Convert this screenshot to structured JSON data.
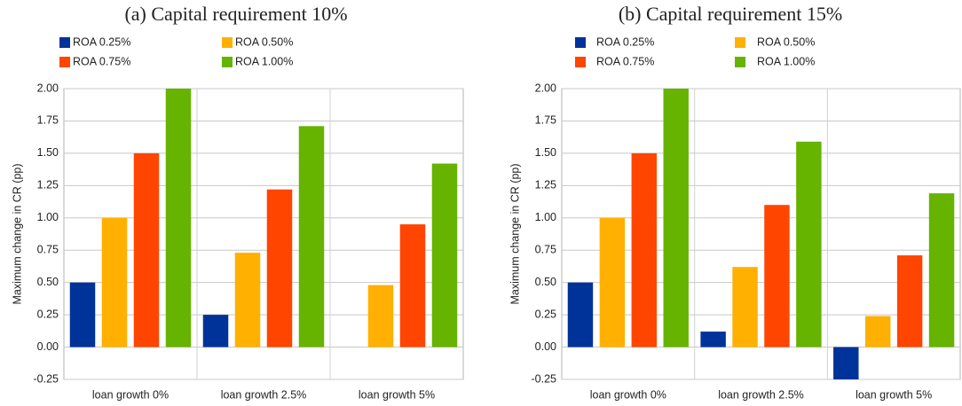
{
  "chart_data": [
    {
      "type": "bar",
      "title": "(a) Capital requirement 10%",
      "y_label": "Maximum change in CR (pp)",
      "categories": [
        "loan growth 0%",
        "loan growth 2.5%",
        "loan growth 5%"
      ],
      "series": [
        {
          "name": "ROA 0.25%",
          "color": "#003399",
          "values": [
            0.5,
            0.25,
            0
          ]
        },
        {
          "name": "ROA 0.50%",
          "color": "#ffb000",
          "values": [
            1.0,
            0.73,
            0.48
          ]
        },
        {
          "name": "ROA 0.75%",
          "color": "#ff4500",
          "values": [
            1.5,
            1.22,
            0.95
          ]
        },
        {
          "name": "ROA 1.00%",
          "color": "#66b300",
          "values": [
            2.0,
            1.71,
            1.42
          ]
        }
      ],
      "ylim": [
        -0.25,
        2.0
      ],
      "yticks": [
        {
          "value": -0.25,
          "label": "-0.25"
        },
        {
          "value": 0,
          "label": "0.00"
        },
        {
          "value": 0.25,
          "label": "0.25"
        },
        {
          "value": 0.5,
          "label": "0.50"
        },
        {
          "value": 0.75,
          "label": "0.75"
        },
        {
          "value": 1.0,
          "label": "1.00"
        },
        {
          "value": 1.25,
          "label": "1.25"
        },
        {
          "value": 1.5,
          "label": "1.50"
        },
        {
          "value": 1.75,
          "label": "1.75"
        },
        {
          "value": 2.0,
          "label": "2.00"
        }
      ],
      "grid": true,
      "legend": "top-left"
    },
    {
      "type": "bar",
      "title": "(b) Capital requirement 15%",
      "y_label": "Maximum change in CR (pp)",
      "categories": [
        "loan growth 0%",
        "loan growth 2.5%",
        "loan growth 5%"
      ],
      "series": [
        {
          "name": "ROA 0.25%",
          "color": "#003399",
          "values": [
            0.5,
            0.12,
            -0.25
          ]
        },
        {
          "name": "ROA 0.50%",
          "color": "#ffb000",
          "values": [
            1.0,
            0.62,
            0.24
          ]
        },
        {
          "name": "ROA 0.75%",
          "color": "#ff4500",
          "values": [
            1.5,
            1.1,
            0.71
          ]
        },
        {
          "name": "ROA 1.00%",
          "color": "#66b300",
          "values": [
            2.0,
            1.59,
            1.19
          ]
        }
      ],
      "ylim": [
        -0.25,
        2.0
      ],
      "yticks": [
        {
          "value": -0.25,
          "label": "-0.25"
        },
        {
          "value": 0,
          "label": "0.00"
        },
        {
          "value": 0.25,
          "label": "0.25"
        },
        {
          "value": 0.5,
          "label": "0.50"
        },
        {
          "value": 0.75,
          "label": "0.75"
        },
        {
          "value": 1.0,
          "label": "1.00"
        },
        {
          "value": 1.25,
          "label": "1.25"
        },
        {
          "value": 1.5,
          "label": "1.50"
        },
        {
          "value": 1.75,
          "label": "1.75"
        },
        {
          "value": 2.0,
          "label": "2.00"
        }
      ],
      "grid": true,
      "legend": "top-left"
    }
  ]
}
